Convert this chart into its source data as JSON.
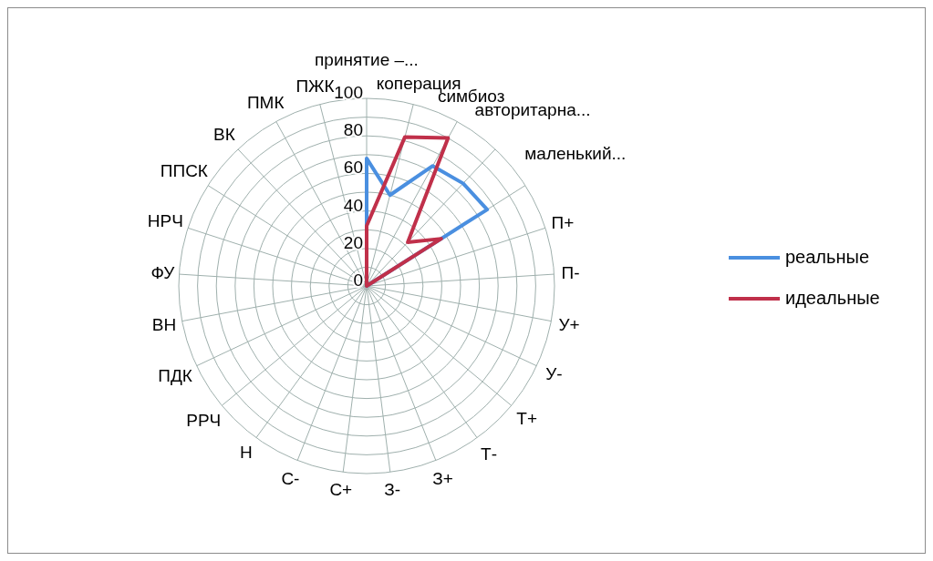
{
  "chart_data": {
    "type": "radar",
    "categories": [
      "принятие –...",
      "коперация",
      "симбиоз",
      "авторитарна...",
      "маленький...",
      "П+",
      "П-",
      "У+",
      "У-",
      "Т+",
      "Т-",
      "З+",
      "З-",
      "С+",
      "С-",
      "Н",
      "РРЧ",
      "ПДК",
      "ВН",
      "ФУ",
      "НРЧ",
      "ППСК",
      "ВК",
      "ПМК",
      "ПЖК"
    ],
    "series": [
      {
        "name": "реальные",
        "color": "#4a8fe0",
        "values": [
          68,
          50,
          73,
          75,
          76,
          0,
          0,
          0,
          0,
          0,
          0,
          0,
          0,
          0,
          0,
          0,
          0,
          0,
          0,
          0,
          0,
          0,
          0,
          0,
          0
        ]
      },
      {
        "name": "идеальные",
        "color": "#c0304a",
        "values": [
          32,
          82,
          90,
          32,
          47,
          0,
          0,
          0,
          0,
          0,
          0,
          0,
          0,
          0,
          0,
          0,
          0,
          0,
          0,
          0,
          0,
          0,
          0,
          0,
          0
        ]
      }
    ],
    "ylim": [
      0,
      100
    ],
    "yticks": [
      0,
      20,
      40,
      60,
      80,
      100
    ],
    "grid": true,
    "legend": "right",
    "marker": "none"
  }
}
